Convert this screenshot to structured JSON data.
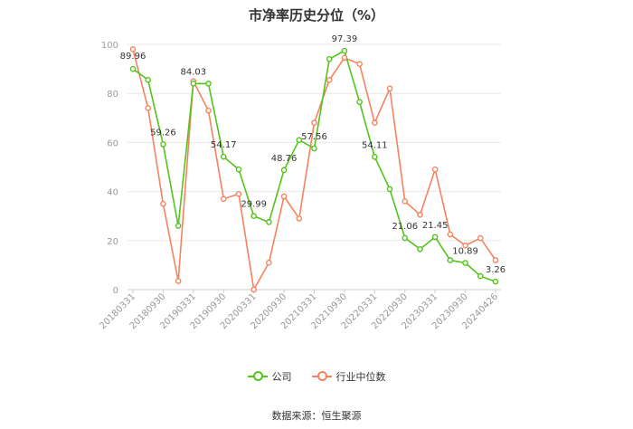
{
  "title": "市净率历史分位（%）",
  "source": "数据来源：恒生聚源",
  "colors": {
    "company": "#52c41a",
    "industry": "#f4845f",
    "grid": "#e8e8e8",
    "axis": "#cccccc"
  },
  "chart_data": {
    "type": "line",
    "title": "市净率历史分位（%）",
    "ylim": [
      0,
      100
    ],
    "yticks": [
      0,
      20,
      40,
      60,
      80,
      100
    ],
    "grid": true,
    "legend_position": "bottom",
    "x_tick_labels": [
      "20180331",
      "20180930",
      "20190331",
      "20190930",
      "20200331",
      "20200930",
      "20210331",
      "20210930",
      "20220331",
      "20220930",
      "20230331",
      "20230930",
      "20240426"
    ],
    "x": [
      "20180331",
      "20180630",
      "20180930",
      "20181231",
      "20190331",
      "20190630",
      "20190930",
      "20191231",
      "20200331",
      "20200630",
      "20200930",
      "20201231",
      "20210331",
      "20210630",
      "20210930",
      "20211231",
      "20220331",
      "20220630",
      "20220930",
      "20221231",
      "20230331",
      "20230630",
      "20230930",
      "20231231",
      "20240426"
    ],
    "series": [
      {
        "name": "公司",
        "values": [
          89.96,
          85.5,
          59.26,
          26.0,
          84.03,
          84.0,
          54.17,
          49.0,
          29.99,
          27.5,
          48.76,
          61.0,
          57.56,
          94.0,
          97.39,
          76.5,
          54.11,
          41.0,
          21.06,
          16.5,
          21.45,
          12.0,
          10.89,
          5.5,
          3.26
        ]
      },
      {
        "name": "行业中位数",
        "values": [
          98.0,
          74.0,
          35.0,
          3.5,
          85.0,
          73.0,
          37.0,
          39.0,
          0.0,
          11.0,
          38.0,
          29.0,
          68.0,
          85.5,
          94.5,
          92.0,
          68.0,
          82.0,
          36.0,
          30.5,
          49.0,
          22.5,
          18.0,
          21.0,
          12.0
        ]
      }
    ],
    "data_labels": [
      {
        "index": 0,
        "text": "89.96"
      },
      {
        "index": 2,
        "text": "59.26"
      },
      {
        "index": 4,
        "text": "84.03"
      },
      {
        "index": 6,
        "text": "54.17"
      },
      {
        "index": 8,
        "text": "29.99"
      },
      {
        "index": 10,
        "text": "48.76"
      },
      {
        "index": 12,
        "text": "57.56"
      },
      {
        "index": 14,
        "text": "97.39"
      },
      {
        "index": 16,
        "text": "54.11"
      },
      {
        "index": 18,
        "text": "21.06"
      },
      {
        "index": 20,
        "text": "21.45"
      },
      {
        "index": 22,
        "text": "10.89"
      },
      {
        "index": 24,
        "text": "3.26"
      }
    ]
  }
}
